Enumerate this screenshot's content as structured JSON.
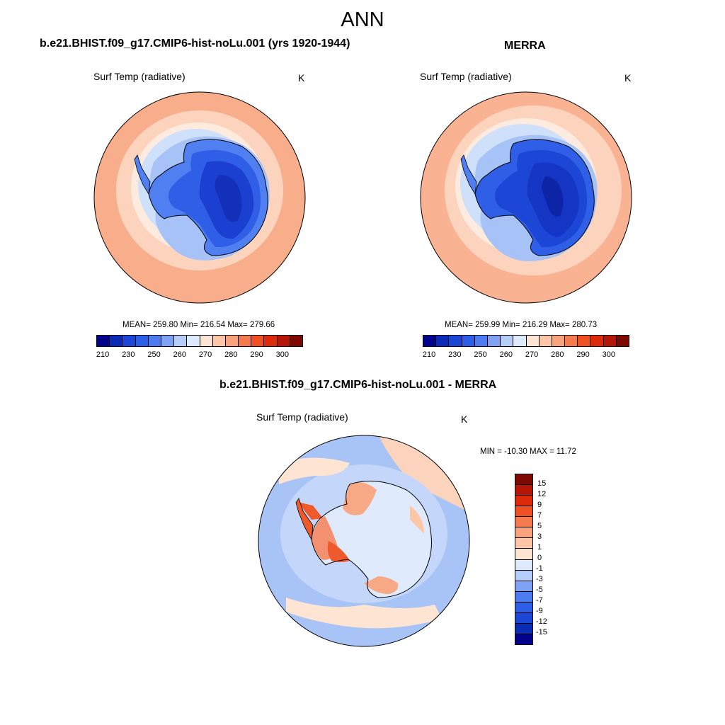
{
  "season": "ANN",
  "panels": {
    "model": {
      "title": "b.e21.BHIST.f09_g17.CMIP6-hist-noLu.001 (yrs 1920-1944)",
      "variable": "Surf Temp (radiative)",
      "units": "K",
      "stats": "MEAN= 259.80  Min= 216.54  Max= 279.66"
    },
    "obs": {
      "title": "MERRA",
      "variable": "Surf Temp (radiative)",
      "units": "K",
      "stats": "MEAN= 259.99  Min= 216.29  Max= 280.73"
    },
    "diff": {
      "title": "b.e21.BHIST.f09_g17.CMIP6-hist-noLu.001 - MERRA",
      "variable": "Surf Temp (radiative)",
      "units": "K",
      "stats": "MIN = -10.30 MAX =  11.72"
    }
  },
  "abs_colorbar": {
    "colors": [
      "#02028a",
      "#0a2cb4",
      "#1c46d6",
      "#2d5ee8",
      "#4d7cf0",
      "#7fa2f5",
      "#b4cdf9",
      "#dde9fd",
      "#fde4d3",
      "#fcc6a7",
      "#f9a37c",
      "#f57a4e",
      "#ee4f23",
      "#dd2a0a",
      "#b51607",
      "#7d0a02"
    ],
    "tick_labels": [
      "210",
      "230",
      "250",
      "260",
      "270",
      "280",
      "290",
      "300"
    ]
  },
  "diff_colorbar": {
    "colors": [
      "#02028a",
      "#0a2cb4",
      "#1c46d6",
      "#2d5ee8",
      "#4d7cf0",
      "#7fa2f5",
      "#b4cdf9",
      "#dde9fd",
      "#fde4d3",
      "#fcc6a7",
      "#f9a37c",
      "#f57a4e",
      "#ee4f23",
      "#dd2a0a",
      "#b51607",
      "#7d0a02"
    ],
    "tick_labels": [
      "15",
      "12",
      "9",
      "7",
      "5",
      "3",
      "1",
      "0",
      "-1",
      "-3",
      "-5",
      "-7",
      "-9",
      "-12",
      "-15"
    ]
  },
  "colors": {
    "ocean_warm": "#f8ad8b",
    "ocean_mid": "#fcd4bd",
    "ice_edge": "#cfe0fb",
    "ice_light": "#a6c2f7",
    "ant_edge": "#4f7ff0",
    "ant_mid": "#2f5fe6",
    "ant_core": "#1b3fd0",
    "ant_deep": "#1230b8",
    "diff_ocean": "#a8c3f6",
    "diff_light": "#dfeafd",
    "diff_warm": "#f7a986",
    "diff_hot": "#ee5a2c"
  }
}
